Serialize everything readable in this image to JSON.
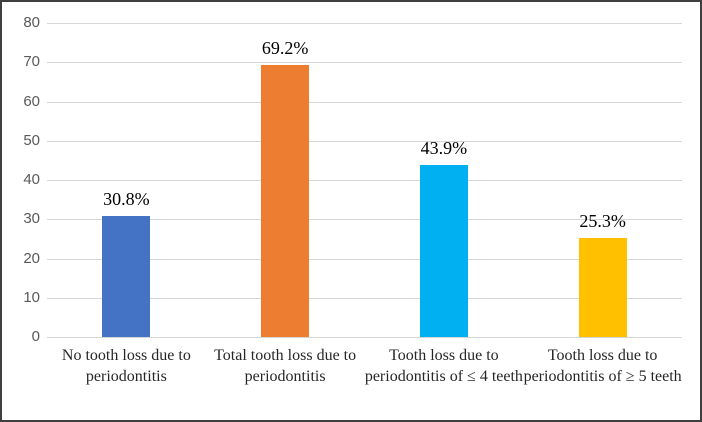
{
  "chart_data": {
    "type": "bar",
    "title": "",
    "xlabel": "",
    "ylabel": "",
    "categories": [
      "No tooth loss due to periodontitis",
      "Total tooth loss due to periodontitis",
      "Tooth loss due to periodontitis of ≤ 4 teeth",
      "Tooth loss due to periodontitis of ≥ 5 teeth"
    ],
    "values": [
      30.8,
      69.2,
      43.9,
      25.3
    ],
    "value_labels": [
      "30.8%",
      "69.2%",
      "43.9%",
      "25.3%"
    ],
    "bar_colors": [
      "#4472C4",
      "#ED7D31",
      "#00B0F0",
      "#FFC000"
    ],
    "ylim": [
      0,
      80
    ],
    "yticks": [
      0,
      10,
      20,
      30,
      40,
      50,
      60,
      70,
      80
    ],
    "grid": true,
    "legend": false
  },
  "colors": {
    "gridline": "#d6d6d6",
    "axis_tick_label": "#595959",
    "category_label": "#262626",
    "value_label": "#000000",
    "border": "#3f3f3f",
    "background": "#ffffff"
  }
}
